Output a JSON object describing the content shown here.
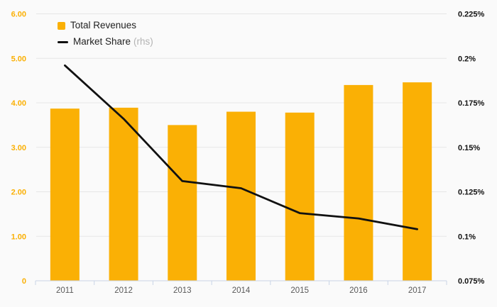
{
  "chart_data": {
    "type": "combo-bar-line",
    "categories": [
      "2011",
      "2012",
      "2013",
      "2014",
      "2015",
      "2016",
      "2017"
    ],
    "series": [
      {
        "name": "Total Revenues",
        "type": "bar",
        "axis": "left",
        "color": "#FAB005",
        "values": [
          3.87,
          3.89,
          3.5,
          3.8,
          3.78,
          4.4,
          4.46
        ]
      },
      {
        "name": "Market Share",
        "suffix": "(rhs)",
        "type": "line",
        "axis": "right",
        "color": "#111111",
        "values": [
          0.196,
          0.166,
          0.131,
          0.127,
          0.113,
          0.11,
          0.104
        ]
      }
    ],
    "left_axis": {
      "min": 0,
      "max": 6,
      "tick_labels": [
        "0",
        "1.00",
        "2.00",
        "3.00",
        "4.00",
        "5.00",
        "6.00"
      ],
      "label_color": "#FAB005"
    },
    "right_axis": {
      "min": 0.075,
      "max": 0.225,
      "tick_labels": [
        "0.075%",
        "0.1%",
        "0.125%",
        "0.15%",
        "0.175%",
        "0.2%",
        "0.225%"
      ],
      "label_color": "#111111"
    },
    "x_axis": {
      "label_color": "#595959",
      "line_color": "#c9d4e7"
    },
    "grid": true,
    "grid_color": "#e6e6e6",
    "background": "#fafafa",
    "legend_position": "top-left",
    "title": "",
    "xlabel": "",
    "ylabel": ""
  },
  "legend": {
    "items": [
      {
        "label": "Total Revenues",
        "marker": "square",
        "color": "#FAB005"
      },
      {
        "label": "Market Share",
        "suffix": "(rhs)",
        "marker": "line",
        "color": "#111111"
      }
    ]
  }
}
